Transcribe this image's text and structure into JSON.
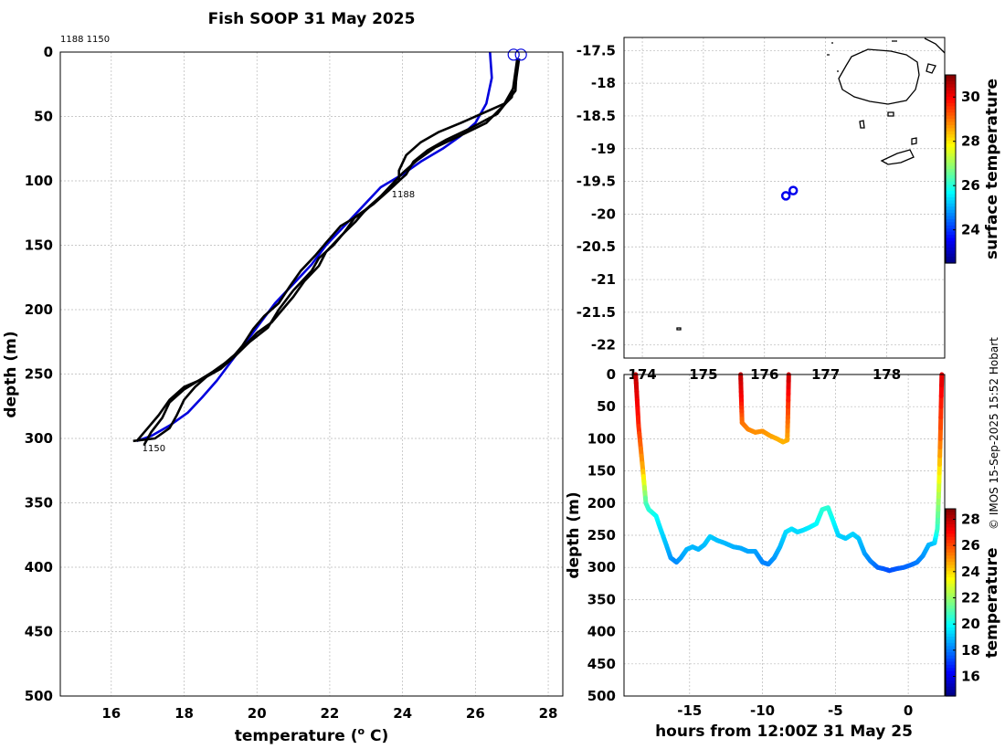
{
  "credit": "© IMOS 15-Sep-2025 15:52 Hobart",
  "chart_data": [
    {
      "type": "line",
      "name": "temperature-depth profiles",
      "title": "Fish SOOP 31 May 2025",
      "xlabel": "temperature (o C)",
      "xlabel_main": "temperature (",
      "xlabel_sup": "o",
      "xlabel_end": " C)",
      "ylabel": "depth (m)",
      "xlim": [
        14.6,
        28.4
      ],
      "ylim": [
        500,
        0
      ],
      "xticks": [
        16,
        18,
        20,
        22,
        24,
        26,
        28
      ],
      "yticks": [
        0,
        50,
        100,
        150,
        200,
        250,
        300,
        350,
        400,
        450,
        500
      ],
      "grid": true,
      "header_note": "1188 1150",
      "surface_markers": [
        [
          27.05,
          2
        ],
        [
          27.25,
          2
        ]
      ],
      "series": [
        {
          "name": "blue reference profile",
          "color": "#0000dd",
          "points": [
            [
              26.4,
              0
            ],
            [
              26.45,
              20
            ],
            [
              26.3,
              40
            ],
            [
              26.0,
              55
            ],
            [
              25.6,
              65
            ],
            [
              25.1,
              75
            ],
            [
              24.5,
              85
            ],
            [
              24.0,
              95
            ],
            [
              23.4,
              105
            ],
            [
              22.9,
              120
            ],
            [
              22.4,
              135
            ],
            [
              21.9,
              150
            ],
            [
              21.5,
              165
            ],
            [
              21.0,
              180
            ],
            [
              20.5,
              195
            ],
            [
              20.1,
              210
            ],
            [
              19.7,
              225
            ],
            [
              19.3,
              240
            ],
            [
              18.9,
              255
            ],
            [
              18.5,
              268
            ],
            [
              18.1,
              280
            ],
            [
              17.6,
              290
            ],
            [
              17.1,
              298
            ],
            [
              16.7,
              302
            ]
          ]
        },
        {
          "name": "black profile 1188",
          "color": "#000000",
          "label": "1188",
          "label_at": [
            23.7,
            110
          ],
          "points": [
            [
              27.2,
              5
            ],
            [
              27.1,
              25
            ],
            [
              26.8,
              40
            ],
            [
              25.6,
              55
            ],
            [
              25.0,
              62
            ],
            [
              24.5,
              70
            ],
            [
              24.1,
              80
            ],
            [
              23.9,
              92
            ],
            [
              23.9,
              100
            ],
            [
              23.6,
              108
            ],
            [
              23.2,
              118
            ],
            [
              22.7,
              128
            ],
            [
              22.4,
              140
            ],
            [
              22.1,
              150
            ],
            [
              21.7,
              160
            ],
            [
              21.5,
              170
            ],
            [
              21.0,
              185
            ],
            [
              20.6,
              200
            ],
            [
              20.3,
              214
            ],
            [
              19.8,
              225
            ],
            [
              19.4,
              236
            ],
            [
              19.0,
              246
            ],
            [
              18.5,
              254
            ],
            [
              18.0,
              260
            ],
            [
              17.6,
              270
            ],
            [
              17.3,
              282
            ],
            [
              17.0,
              292
            ],
            [
              16.7,
              302
            ]
          ]
        },
        {
          "name": "black profile 1150",
          "color": "#000000",
          "label": "1150",
          "label_at": [
            16.85,
            307
          ],
          "points": [
            [
              27.15,
              5
            ],
            [
              27.1,
              30
            ],
            [
              26.6,
              48
            ],
            [
              25.8,
              60
            ],
            [
              25.2,
              68
            ],
            [
              24.7,
              76
            ],
            [
              24.3,
              85
            ],
            [
              24.1,
              95
            ],
            [
              23.7,
              105
            ],
            [
              23.3,
              115
            ],
            [
              22.9,
              125
            ],
            [
              22.3,
              135
            ],
            [
              21.9,
              148
            ],
            [
              21.6,
              158
            ],
            [
              21.2,
              170
            ],
            [
              20.9,
              182
            ],
            [
              20.6,
              195
            ],
            [
              20.2,
              205
            ],
            [
              19.9,
              215
            ],
            [
              19.6,
              228
            ],
            [
              19.3,
              238
            ],
            [
              18.8,
              248
            ],
            [
              18.4,
              255
            ],
            [
              18.0,
              262
            ],
            [
              17.6,
              272
            ],
            [
              17.4,
              284
            ],
            [
              17.1,
              295
            ],
            [
              16.9,
              305
            ]
          ]
        },
        {
          "name": "black profile 3",
          "color": "#000000",
          "points": [
            [
              27.15,
              5
            ],
            [
              27.0,
              35
            ],
            [
              26.3,
              55
            ],
            [
              25.5,
              66
            ],
            [
              24.9,
              74
            ],
            [
              24.4,
              84
            ],
            [
              24.0,
              94
            ],
            [
              23.7,
              103
            ],
            [
              23.4,
              112
            ],
            [
              23.0,
              122
            ],
            [
              22.7,
              132
            ],
            [
              22.3,
              143
            ],
            [
              21.9,
              155
            ],
            [
              21.7,
              166
            ],
            [
              21.3,
              178
            ],
            [
              21.0,
              190
            ],
            [
              20.7,
              200
            ],
            [
              20.4,
              210
            ],
            [
              20.0,
              218
            ],
            [
              19.6,
              230
            ],
            [
              19.1,
              242
            ],
            [
              18.7,
              250
            ],
            [
              18.3,
              260
            ],
            [
              18.0,
              270
            ],
            [
              17.8,
              282
            ],
            [
              17.6,
              292
            ],
            [
              17.2,
              300
            ],
            [
              16.6,
              302
            ]
          ]
        }
      ]
    },
    {
      "type": "scatter",
      "name": "map",
      "ylim": [
        -22.2,
        -17.3
      ],
      "xlim": [
        173.7,
        178.95
      ],
      "yticks": [
        -17.5,
        -18,
        -18.5,
        -19,
        -19.5,
        -20,
        -20.5,
        -21,
        -21.5,
        -22
      ],
      "ytick_labels": [
        "-17.5",
        "-18",
        "-18.5",
        "-19",
        "-19.5",
        "-20",
        "-20.5",
        "-21",
        "-21.5",
        "-22"
      ],
      "xticks": [
        174,
        175,
        176,
        177,
        178
      ],
      "xtick_labels": [
        "174",
        "175",
        "176",
        "177",
        "178"
      ],
      "grid": true,
      "points": [
        [
          176.35,
          -19.72
        ],
        [
          176.47,
          -19.64
        ]
      ],
      "colorbar": {
        "label": "surface temperature",
        "range": [
          22.5,
          31
        ],
        "ticks": [
          24,
          26,
          28,
          30
        ]
      }
    },
    {
      "type": "scatter",
      "name": "depth-time section",
      "xlabel": "hours from 12:00Z 31 May 25",
      "ylabel": "depth (m)",
      "xlim": [
        -19.5,
        2.5
      ],
      "ylim": [
        500,
        0
      ],
      "xticks": [
        -15,
        -10,
        -5,
        0
      ],
      "xtick_labels": [
        "-15",
        "-10",
        "-5",
        "0"
      ],
      "yticks": [
        0,
        50,
        100,
        150,
        200,
        250,
        300,
        350,
        400,
        450,
        500
      ],
      "grid": true,
      "colorbar": {
        "label": "temperature",
        "range": [
          14.5,
          28.8
        ],
        "ticks": [
          16,
          18,
          20,
          22,
          24,
          26,
          28
        ]
      },
      "tracks": [
        {
          "name": "long cast",
          "points": [
            [
              -18.7,
              0,
              28.0
            ],
            [
              -18.5,
              80,
              26.5
            ],
            [
              -18.2,
              150,
              24.5
            ],
            [
              -18.0,
              200,
              21.0
            ],
            [
              -17.8,
              210,
              20.5
            ],
            [
              -17.3,
              220,
              20.0
            ],
            [
              -17.0,
              240,
              19.5
            ],
            [
              -16.6,
              265,
              19.0
            ],
            [
              -16.3,
              285,
              18.5
            ],
            [
              -15.9,
              292,
              18.2
            ],
            [
              -15.6,
              285,
              18.5
            ],
            [
              -15.2,
              272,
              18.8
            ],
            [
              -14.8,
              268,
              18.9
            ],
            [
              -14.4,
              272,
              18.8
            ],
            [
              -14.0,
              265,
              18.9
            ],
            [
              -13.6,
              252,
              19.2
            ],
            [
              -13.1,
              258,
              19.0
            ],
            [
              -12.6,
              262,
              18.9
            ],
            [
              -12.0,
              268,
              18.8
            ],
            [
              -11.5,
              270,
              18.7
            ],
            [
              -11.0,
              275,
              18.6
            ],
            [
              -10.5,
              275,
              18.6
            ],
            [
              -10.0,
              292,
              18.2
            ],
            [
              -9.6,
              295,
              18.1
            ],
            [
              -9.2,
              285,
              18.4
            ],
            [
              -8.8,
              268,
              18.8
            ],
            [
              -8.4,
              245,
              19.3
            ],
            [
              -8.0,
              240,
              19.5
            ],
            [
              -7.6,
              245,
              19.3
            ],
            [
              -7.2,
              242,
              19.4
            ],
            [
              -6.8,
              238,
              19.6
            ],
            [
              -6.3,
              232,
              19.8
            ],
            [
              -5.9,
              210,
              20.4
            ],
            [
              -5.5,
              207,
              20.5
            ],
            [
              -5.2,
              225,
              20.0
            ],
            [
              -4.8,
              250,
              19.3
            ],
            [
              -4.3,
              255,
              19.1
            ],
            [
              -3.8,
              248,
              19.3
            ],
            [
              -3.4,
              255,
              19.1
            ],
            [
              -3.0,
              278,
              18.6
            ],
            [
              -2.6,
              290,
              18.2
            ],
            [
              -2.1,
              300,
              17.8
            ],
            [
              -1.7,
              302,
              17.6
            ],
            [
              -1.3,
              305,
              17.4
            ],
            [
              -0.8,
              302,
              17.5
            ],
            [
              -0.3,
              300,
              17.7
            ],
            [
              0.2,
              296,
              17.8
            ],
            [
              0.6,
              292,
              18.0
            ],
            [
              1.0,
              282,
              18.3
            ],
            [
              1.4,
              265,
              18.8
            ],
            [
              1.8,
              262,
              19.0
            ],
            [
              2.0,
              240,
              20.5
            ],
            [
              2.1,
              180,
              22.5
            ],
            [
              2.2,
              100,
              25.5
            ],
            [
              2.3,
              0,
              27.5
            ]
          ]
        },
        {
          "name": "short cast",
          "points": [
            [
              -11.5,
              0,
              28.0
            ],
            [
              -11.45,
              40,
              27.0
            ],
            [
              -11.4,
              75,
              25.5
            ],
            [
              -11.0,
              85,
              25.2
            ],
            [
              -10.5,
              90,
              25.0
            ],
            [
              -10.0,
              88,
              25.0
            ],
            [
              -9.5,
              95,
              24.8
            ],
            [
              -9.0,
              100,
              24.6
            ],
            [
              -8.6,
              105,
              24.5
            ],
            [
              -8.3,
              102,
              24.5
            ],
            [
              -8.25,
              60,
              25.8
            ],
            [
              -8.2,
              0,
              27.8
            ]
          ]
        }
      ]
    }
  ]
}
